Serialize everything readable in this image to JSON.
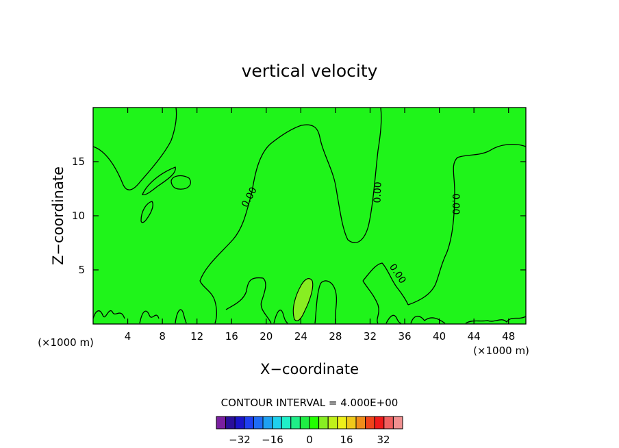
{
  "chart_data": {
    "type": "contour",
    "title": "vertical velocity",
    "xlabel": "X−coordinate",
    "ylabel": "Z−coordinate",
    "x_unit_left": "(×1000 m)",
    "x_unit_right": "(×1000 m)",
    "xlim": [
      0,
      50
    ],
    "ylim": [
      0,
      20
    ],
    "x_ticks": [
      4,
      8,
      12,
      16,
      20,
      24,
      28,
      32,
      36,
      40,
      44,
      48
    ],
    "y_ticks": [
      5,
      10,
      15
    ],
    "contour_labels": [
      "0.00",
      "0.00",
      "0.00",
      "0.00"
    ],
    "contour_interval_text": "CONTOUR INTERVAL = 4.000E+00",
    "colorbar": {
      "colors": [
        "#7a1fa0",
        "#2a0f9a",
        "#1a14c8",
        "#1f3ff0",
        "#1f6cf5",
        "#1fa0f2",
        "#1fd0ee",
        "#1ff0c8",
        "#1fee88",
        "#1fee44",
        "#22ff00",
        "#88ee22",
        "#c0f01a",
        "#eef01a",
        "#f0c81a",
        "#f08c1a",
        "#f0441a",
        "#f01a1a",
        "#f06060",
        "#f09090"
      ],
      "tick_labels": [
        "−32",
        "−16",
        "0",
        "16",
        "32"
      ]
    },
    "colors": {
      "background_fill": "#1ff41a",
      "highlight_fill": "#88ee22"
    }
  }
}
